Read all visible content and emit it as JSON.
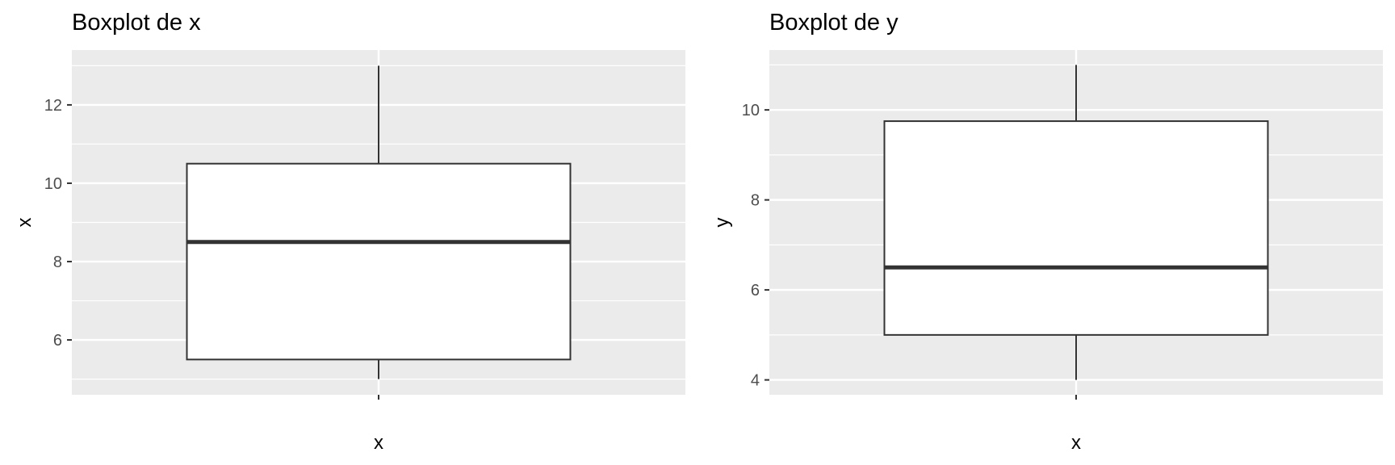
{
  "chart_data": [
    {
      "type": "box",
      "title": "Boxplot de x",
      "xlabel": "x",
      "ylabel": "x",
      "categories": [
        "x"
      ],
      "box": {
        "min": 5.0,
        "q1": 5.5,
        "median": 8.5,
        "q3": 10.5,
        "max": 13.0
      },
      "ylim": [
        4.6,
        13.4
      ],
      "yticks": [
        6,
        8,
        10,
        12
      ],
      "grid": true,
      "legend": "none"
    },
    {
      "type": "box",
      "title": "Boxplot de y",
      "xlabel": "x",
      "ylabel": "y",
      "categories": [
        "x"
      ],
      "box": {
        "min": 4.0,
        "q1": 5.0,
        "median": 6.5,
        "q3": 9.75,
        "max": 11.0
      },
      "ylim": [
        3.67,
        11.33
      ],
      "yticks": [
        4,
        6,
        8,
        10
      ],
      "grid": true,
      "legend": "none"
    }
  ],
  "colors": {
    "panel_bg": "#ebebeb",
    "grid": "#ffffff",
    "box_fill": "#ffffff",
    "box_line": "#333333",
    "text": "#4d4d4d"
  }
}
